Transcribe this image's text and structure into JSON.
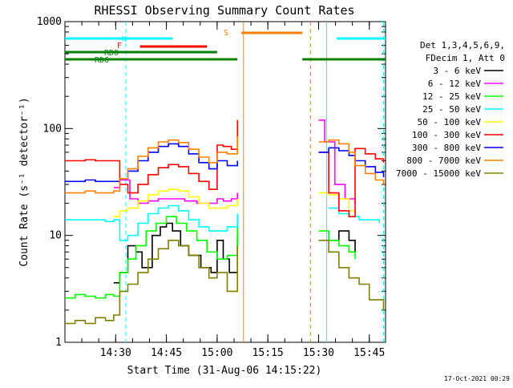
{
  "title": "RHESSI Observing Summary Count Rates",
  "xlabel": "Start Time (31-Aug-06 14:15:22)",
  "ylabel": "Count Rate (s⁻¹ detector⁻¹)",
  "footer": "17-Oct-2021 00:29",
  "legend": {
    "header_lines": [
      "Det 1,3,4,5,6,9,",
      "FDecim 1, Att 0"
    ],
    "entries": [
      {
        "label": "3 - 6 keV",
        "color": "#000000"
      },
      {
        "label": "6 - 12 keV",
        "color": "#ff00ff"
      },
      {
        "label": "12 - 25 keV",
        "color": "#00ff00"
      },
      {
        "label": "25 - 50 keV",
        "color": "#00ffff"
      },
      {
        "label": "50 - 100 keV",
        "color": "#ffff00"
      },
      {
        "label": "100 - 300 keV",
        "color": "#ff0000"
      },
      {
        "label": "300 - 800 keV",
        "color": "#0000ff"
      },
      {
        "label": "800 - 7000 keV",
        "color": "#ff8000"
      },
      {
        "label": "7000 - 15000 keV",
        "color": "#808000"
      }
    ]
  },
  "flags": [
    {
      "label": "N",
      "color": "#00ffff",
      "segments": [
        [
          14.25,
          14.78
        ],
        [
          15.59,
          15.83
        ]
      ]
    },
    {
      "label": "F",
      "color": "#ff0000",
      "segments": [
        [
          14.62,
          14.95
        ]
      ]
    },
    {
      "label": "S",
      "color": "#ff8000",
      "segments": [
        [
          15.12,
          15.42
        ]
      ]
    },
    {
      "label": "RD0",
      "color": "#008000",
      "segments": [
        [
          14.25,
          15.0
        ]
      ]
    },
    {
      "label": "RD6",
      "color": "#008000",
      "segments": [
        [
          14.25,
          15.1
        ],
        [
          15.42,
          15.83
        ]
      ]
    }
  ],
  "chart_data": {
    "type": "line",
    "title": "RHESSI Observing Summary Count Rates",
    "xlabel": "Start Time (31-Aug-06 14:15:22)",
    "ylabel": "Count Rate (s⁻¹ detector⁻¹)",
    "x_unit": "UT hours on 31-Aug-06",
    "xlim": [
      14.25,
      15.83
    ],
    "ylim": [
      1,
      1000
    ],
    "yscale": "log",
    "x_ticks": [
      {
        "value": 14.5,
        "label": "14:30"
      },
      {
        "value": 14.75,
        "label": "14:45"
      },
      {
        "value": 15.0,
        "label": "15:00"
      },
      {
        "value": 15.25,
        "label": "15:15"
      },
      {
        "value": 15.5,
        "label": "15:30"
      },
      {
        "value": 15.75,
        "label": "15:45"
      }
    ],
    "y_ticks": [
      {
        "value": 1,
        "label": "1"
      },
      {
        "value": 10,
        "label": "10"
      },
      {
        "value": 100,
        "label": "100"
      },
      {
        "value": 1000,
        "label": "1000"
      }
    ],
    "vertical_lines": [
      {
        "x": 14.55,
        "color": "#00ffff",
        "style": "dashed"
      },
      {
        "x": 15.13,
        "color": "#ff8000",
        "style": "solid"
      },
      {
        "x": 15.46,
        "color": "#ff8000",
        "style": "dashed"
      },
      {
        "x": 15.54,
        "color": "#00ffff",
        "style": "solid"
      },
      {
        "x": 15.82,
        "color": "#00ffff",
        "style": "dashed"
      }
    ],
    "series": [
      {
        "name": "3 - 6 keV",
        "color": "#000000",
        "data": [
          [
            14.49,
            3.6
          ],
          [
            14.52,
            4.5
          ],
          [
            14.56,
            8
          ],
          [
            14.6,
            7
          ],
          [
            14.63,
            5
          ],
          [
            14.68,
            10
          ],
          [
            14.72,
            12
          ],
          [
            14.75,
            13
          ],
          [
            14.78,
            11
          ],
          [
            14.82,
            8
          ],
          [
            14.86,
            6.5
          ],
          [
            14.92,
            5
          ],
          [
            14.97,
            4.5
          ],
          [
            15.0,
            9
          ],
          [
            15.03,
            6
          ],
          [
            15.06,
            4.5
          ],
          [
            15.1,
            10
          ],
          null,
          [
            15.55,
            9
          ],
          [
            15.6,
            11
          ],
          [
            15.65,
            9
          ],
          [
            15.68,
            7
          ]
        ]
      },
      {
        "name": "6 - 12 keV",
        "color": "#ff00ff",
        "data": [
          [
            14.49,
            28
          ],
          [
            14.52,
            33
          ],
          [
            14.57,
            22
          ],
          [
            14.61,
            20
          ],
          [
            14.66,
            21
          ],
          [
            14.71,
            22
          ],
          [
            14.78,
            22
          ],
          [
            14.84,
            21
          ],
          [
            14.9,
            20
          ],
          [
            14.96,
            20
          ],
          [
            15.0,
            22
          ],
          [
            15.03,
            21
          ],
          [
            15.07,
            22
          ],
          [
            15.1,
            25
          ],
          null,
          [
            15.5,
            120
          ],
          [
            15.53,
            75
          ],
          [
            15.58,
            30
          ],
          [
            15.63,
            22
          ],
          [
            15.68,
            20
          ]
        ]
      },
      {
        "name": "12 - 25 keV",
        "color": "#00ff00",
        "data": [
          [
            14.25,
            2.6
          ],
          [
            14.3,
            2.8
          ],
          [
            14.35,
            2.7
          ],
          [
            14.4,
            2.6
          ],
          [
            14.45,
            2.8
          ],
          [
            14.49,
            2.7
          ],
          [
            14.52,
            4.5
          ],
          [
            14.56,
            6
          ],
          [
            14.6,
            8
          ],
          [
            14.65,
            11
          ],
          [
            14.7,
            13
          ],
          [
            14.75,
            15
          ],
          [
            14.8,
            13
          ],
          [
            14.85,
            11
          ],
          [
            14.9,
            9
          ],
          [
            14.95,
            7
          ],
          [
            15.0,
            6
          ],
          [
            15.05,
            6.5
          ],
          [
            15.1,
            14
          ],
          null,
          [
            15.5,
            11
          ],
          [
            15.55,
            9
          ],
          [
            15.6,
            8
          ],
          [
            15.65,
            7
          ],
          [
            15.68,
            6
          ]
        ]
      },
      {
        "name": "25 - 50 keV",
        "color": "#00ffff",
        "data": [
          [
            14.25,
            14
          ],
          [
            14.3,
            14
          ],
          [
            14.35,
            14
          ],
          [
            14.4,
            14
          ],
          [
            14.45,
            13.5
          ],
          [
            14.49,
            14
          ],
          [
            14.52,
            9
          ],
          [
            14.56,
            10
          ],
          [
            14.61,
            13
          ],
          [
            14.66,
            16
          ],
          [
            14.71,
            18
          ],
          [
            14.76,
            19
          ],
          [
            14.81,
            17
          ],
          [
            14.86,
            14
          ],
          [
            14.91,
            12
          ],
          [
            14.96,
            11
          ],
          [
            15.0,
            11
          ],
          [
            15.05,
            12
          ],
          [
            15.1,
            16
          ],
          null,
          [
            15.55,
            18
          ],
          [
            15.6,
            16
          ],
          [
            15.65,
            15
          ],
          [
            15.7,
            14
          ],
          [
            15.75,
            14
          ],
          [
            15.8,
            13
          ]
        ]
      },
      {
        "name": "50 - 100 keV",
        "color": "#ffff00",
        "data": [
          [
            14.49,
            15
          ],
          [
            14.52,
            17
          ],
          [
            14.56,
            18
          ],
          [
            14.61,
            21
          ],
          [
            14.66,
            24
          ],
          [
            14.71,
            26
          ],
          [
            14.76,
            27
          ],
          [
            14.81,
            26
          ],
          [
            14.86,
            23
          ],
          [
            14.91,
            20
          ],
          [
            14.96,
            18
          ],
          [
            15.0,
            18
          ],
          [
            15.05,
            19
          ],
          [
            15.1,
            22
          ],
          null,
          [
            15.5,
            25
          ],
          [
            15.55,
            24
          ],
          [
            15.6,
            22
          ],
          [
            15.65,
            17
          ],
          [
            15.68,
            16
          ]
        ]
      },
      {
        "name": "100 - 300 keV",
        "color": "#ff0000",
        "data": [
          [
            14.25,
            50
          ],
          [
            14.3,
            50
          ],
          [
            14.35,
            51
          ],
          [
            14.4,
            50
          ],
          [
            14.45,
            50
          ],
          [
            14.49,
            50
          ],
          [
            14.52,
            30
          ],
          [
            14.56,
            25
          ],
          [
            14.61,
            30
          ],
          [
            14.66,
            37
          ],
          [
            14.71,
            43
          ],
          [
            14.76,
            46
          ],
          [
            14.81,
            44
          ],
          [
            14.86,
            38
          ],
          [
            14.91,
            32
          ],
          [
            14.96,
            27
          ],
          [
            15.0,
            70
          ],
          [
            15.03,
            68
          ],
          [
            15.07,
            64
          ],
          [
            15.1,
            120
          ],
          null,
          [
            15.5,
            60
          ],
          [
            15.55,
            25
          ],
          [
            15.6,
            17
          ],
          [
            15.65,
            15
          ],
          [
            15.68,
            65
          ],
          [
            15.73,
            58
          ],
          [
            15.78,
            52
          ],
          [
            15.82,
            48
          ]
        ]
      },
      {
        "name": "300 - 800 keV",
        "color": "#0000ff",
        "data": [
          [
            14.25,
            32
          ],
          [
            14.3,
            32
          ],
          [
            14.35,
            33
          ],
          [
            14.4,
            32
          ],
          [
            14.45,
            32
          ],
          [
            14.49,
            32
          ],
          [
            14.52,
            34
          ],
          [
            14.56,
            40
          ],
          [
            14.61,
            50
          ],
          [
            14.66,
            60
          ],
          [
            14.71,
            68
          ],
          [
            14.76,
            72
          ],
          [
            14.81,
            68
          ],
          [
            14.86,
            58
          ],
          [
            14.91,
            48
          ],
          [
            14.96,
            42
          ],
          [
            15.0,
            50
          ],
          [
            15.05,
            45
          ],
          [
            15.1,
            50
          ],
          null,
          [
            15.5,
            60
          ],
          [
            15.55,
            66
          ],
          [
            15.6,
            62
          ],
          [
            15.65,
            56
          ],
          [
            15.68,
            50
          ],
          [
            15.73,
            44
          ],
          [
            15.78,
            39
          ],
          [
            15.82,
            35
          ]
        ]
      },
      {
        "name": "800 - 7000 keV",
        "color": "#ff8000",
        "data": [
          [
            14.25,
            25
          ],
          [
            14.3,
            25
          ],
          [
            14.35,
            26
          ],
          [
            14.4,
            25
          ],
          [
            14.45,
            25
          ],
          [
            14.49,
            26
          ],
          [
            14.52,
            34
          ],
          [
            14.56,
            42
          ],
          [
            14.61,
            55
          ],
          [
            14.66,
            66
          ],
          [
            14.71,
            75
          ],
          [
            14.76,
            78
          ],
          [
            14.81,
            74
          ],
          [
            14.86,
            64
          ],
          [
            14.91,
            54
          ],
          [
            14.96,
            48
          ],
          [
            15.0,
            60
          ],
          [
            15.05,
            58
          ],
          [
            15.1,
            85
          ],
          null,
          [
            15.5,
            75
          ],
          [
            15.55,
            78
          ],
          [
            15.6,
            72
          ],
          [
            15.65,
            60
          ],
          [
            15.68,
            45
          ],
          [
            15.73,
            38
          ],
          [
            15.78,
            33
          ],
          [
            15.82,
            30
          ]
        ]
      },
      {
        "name": "7000 - 15000 keV",
        "color": "#808000",
        "data": [
          [
            14.25,
            1.5
          ],
          [
            14.3,
            1.6
          ],
          [
            14.35,
            1.5
          ],
          [
            14.4,
            1.7
          ],
          [
            14.45,
            1.6
          ],
          [
            14.49,
            1.8
          ],
          [
            14.52,
            3
          ],
          [
            14.56,
            3.5
          ],
          [
            14.61,
            4.5
          ],
          [
            14.66,
            6
          ],
          [
            14.71,
            7.5
          ],
          [
            14.76,
            9
          ],
          [
            14.81,
            8
          ],
          [
            14.86,
            6.5
          ],
          [
            14.91,
            5
          ],
          [
            14.96,
            4
          ],
          [
            15.0,
            4.5
          ],
          [
            15.05,
            3
          ],
          [
            15.1,
            8
          ],
          null,
          [
            15.5,
            9
          ],
          [
            15.55,
            7
          ],
          [
            15.6,
            5
          ],
          [
            15.65,
            4
          ],
          [
            15.7,
            3.5
          ],
          [
            15.75,
            2.5
          ],
          [
            15.82,
            2
          ]
        ]
      }
    ]
  }
}
